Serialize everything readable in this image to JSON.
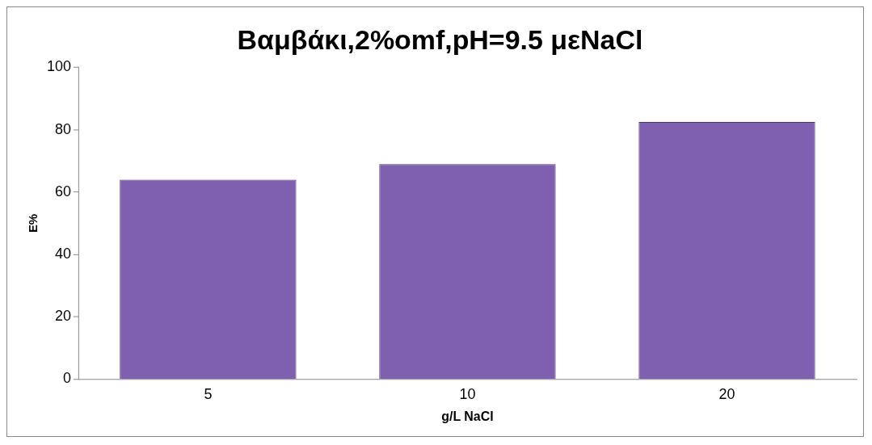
{
  "chart_data": {
    "type": "bar",
    "title": "Βαμβάκι,2%omf,pH=9.5 μεNaCl",
    "xlabel": "g/L NaCl",
    "ylabel": "E%",
    "categories": [
      "5",
      "10",
      "20"
    ],
    "values": [
      64,
      69,
      82.5
    ],
    "color": "#7f5fb0",
    "ylim": [
      0,
      100
    ],
    "yticks": [
      0,
      20,
      40,
      60,
      80,
      100
    ],
    "grid": false,
    "legend": false
  }
}
